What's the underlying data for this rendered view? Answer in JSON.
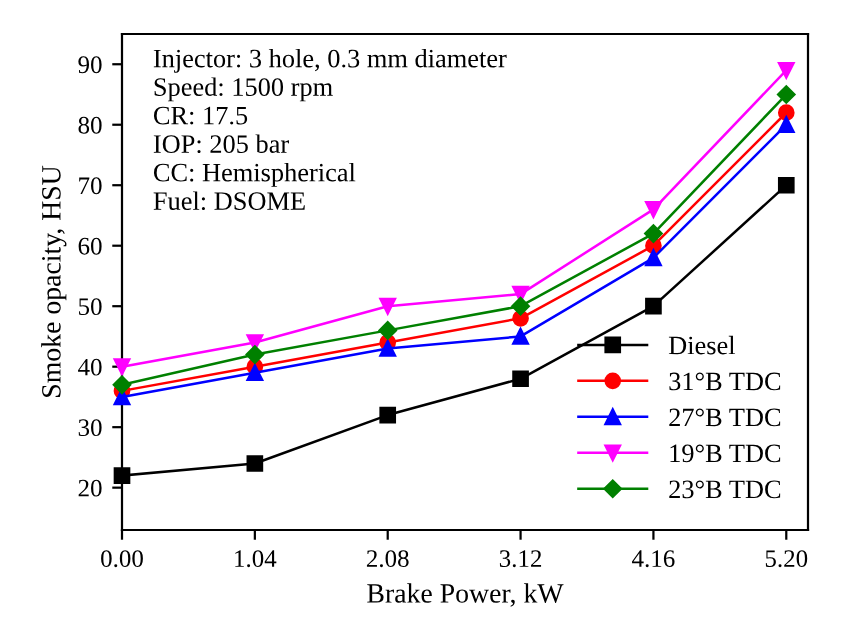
{
  "chart_data": {
    "type": "line",
    "xlabel": "Brake Power, kW",
    "ylabel": "Smoke opacity, HSU",
    "x": [
      0.0,
      1.04,
      2.08,
      3.12,
      4.16,
      5.2
    ],
    "series": [
      {
        "name": "Diesel",
        "color": "#000000",
        "marker": "square",
        "values": [
          22,
          24,
          32,
          38,
          50,
          70
        ]
      },
      {
        "name": "31°B TDC",
        "color": "#ff0000",
        "marker": "circle",
        "values": [
          36,
          40,
          44,
          48,
          60,
          82
        ]
      },
      {
        "name": "27°B TDC",
        "color": "#0000ff",
        "marker": "triangle",
        "values": [
          35,
          39,
          43,
          45,
          58,
          80
        ]
      },
      {
        "name": "19°B TDC",
        "color": "#ff00ff",
        "marker": "triangle_down",
        "values": [
          40,
          44,
          50,
          52,
          66,
          89
        ]
      },
      {
        "name": "23°B TDC",
        "color": "#008000",
        "marker": "diamond",
        "values": [
          37,
          42,
          46,
          50,
          62,
          85
        ]
      }
    ],
    "annotations": [
      "Injector: 3 hole, 0.3 mm diameter\nSpeed: 1500 rpm\nCR: 17.5\nIOP: 205 bar\nCC: Hemispherical\nFuel: DSOME"
    ],
    "xlim": [
      0,
      5.37
    ],
    "xticks": [
      {
        "value": 0,
        "label": "0.00"
      },
      1.04,
      2.08,
      3.12,
      4.16,
      {
        "value": 5.2,
        "label": "5.20"
      }
    ],
    "ylim": [
      13,
      95
    ],
    "yticks": [
      20,
      30,
      40,
      50,
      60,
      70,
      80,
      90
    ],
    "grid": false,
    "legend": "bottom right",
    "line_style": "solid"
  }
}
